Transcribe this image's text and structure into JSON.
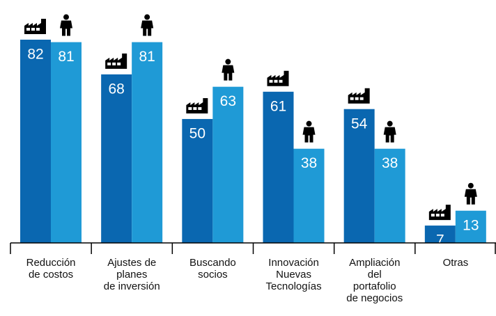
{
  "chart_data": {
    "type": "bar",
    "categories": [
      [
        "Reducción",
        "de costos"
      ],
      [
        "Ajustes de",
        "planes",
        "de inversión"
      ],
      [
        "Buscando",
        "socios"
      ],
      [
        "Innovación",
        "Nuevas",
        "Tecnologías"
      ],
      [
        "Ampliación",
        "del",
        "portafolio",
        "de negocios"
      ],
      [
        "Otras"
      ]
    ],
    "series": [
      {
        "color": "#0a67b0",
        "values": [
          82,
          68,
          50,
          61,
          54,
          7
        ]
      },
      {
        "color": "#1f9ad6",
        "values": [
          81,
          81,
          63,
          38,
          38,
          13
        ]
      }
    ],
    "ylim": [
      0,
      82
    ]
  }
}
